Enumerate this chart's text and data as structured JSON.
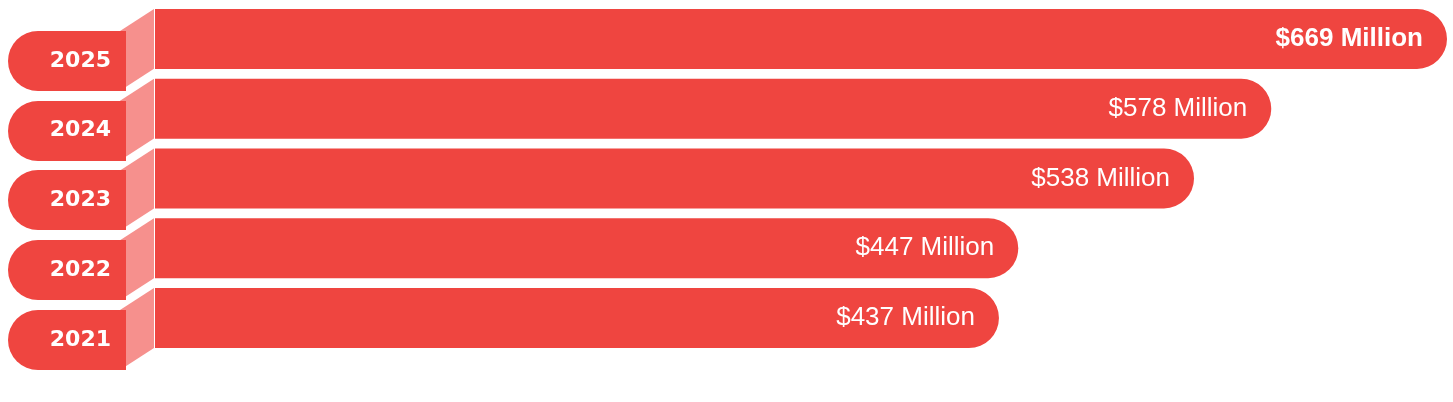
{
  "chart_data": {
    "type": "bar",
    "orientation": "horizontal",
    "categories": [
      "2025",
      "2024",
      "2023",
      "2022",
      "2021"
    ],
    "values": [
      669,
      578,
      538,
      447,
      437
    ],
    "value_labels": [
      "$669 Million",
      "$578 Million",
      "$538 Million",
      "$447 Million",
      "$437 Million"
    ],
    "color": "#ef4540",
    "legend": false
  }
}
